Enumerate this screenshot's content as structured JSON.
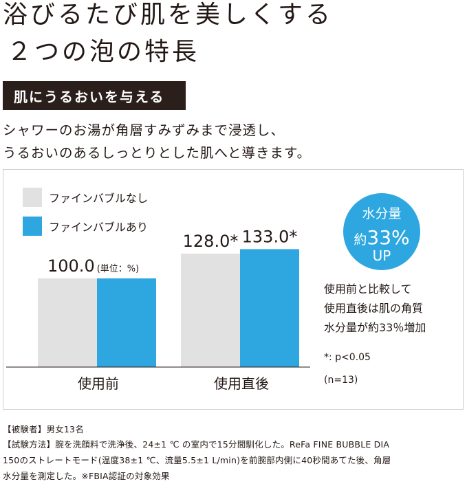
{
  "heading": {
    "line1": "浴びるたび肌を美しくする",
    "line2": "２つの泡の特長"
  },
  "badge": "肌にうるおいを与える",
  "lead": {
    "line1": "シャワーのお湯が角層すみずみまで浸透し、",
    "line2": "うるおいのあるしっとりとした肌へと導きます。"
  },
  "chart_data": {
    "type": "bar",
    "categories": [
      "使用前",
      "使用直後"
    ],
    "series": [
      {
        "name": "ファインバブルなし",
        "values": [
          100.0,
          128.0
        ],
        "labels": [
          "100.0",
          "128.0*"
        ],
        "color": "#e1e1e1"
      },
      {
        "name": "ファインバブルあり",
        "values": [
          100.0,
          133.0
        ],
        "labels": [
          "",
          "133.0*"
        ],
        "color": "#2ea7e0"
      }
    ],
    "unit_note": "(単位：%)",
    "legend_position": "top-left",
    "grid": false,
    "ylim": [
      0,
      150
    ]
  },
  "callout": {
    "line1": "水分量",
    "line2_prefix": "約",
    "line2_value": "33%",
    "line3": "UP",
    "color": "#2ea7e0"
  },
  "summary": {
    "line1": "使用前と比較して",
    "line2": "使用直後は肌の角質",
    "line3": "水分量が約33％増加"
  },
  "significance": "*: p<0.05",
  "sample_size": "(n=13)",
  "footnotes": {
    "line1": "【被験者】男女13名",
    "line2": "【試験方法】腕を洗顔料で洗浄後、24±1 ℃ の室内で15分間馴化した。ReFa FINE BUBBLE DIA",
    "line3": "150のストレートモード(温度38±1 ℃、流量5.5±1 L/min)を前腕部内側に40秒間あてた後、角層",
    "line4": "水分量を測定した。※FBIA認証の対象効果"
  }
}
